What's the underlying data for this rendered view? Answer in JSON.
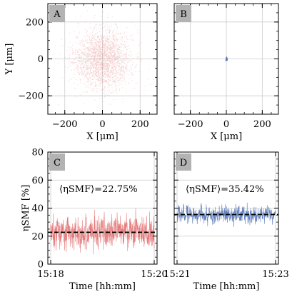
{
  "colors": {
    "red_series": "#e06666",
    "blue_series": "#4a6db3",
    "grid": "#cccccc",
    "panel_label_bg": "#b3b3b3",
    "mean_line": "#000000"
  },
  "chart_data": [
    {
      "panel": "A",
      "type": "scatter",
      "xlabel": "X [μm]",
      "ylabel": "Y [μm]",
      "xlim": [
        -290,
        290
      ],
      "ylim": [
        -300,
        300
      ],
      "xticks": [
        -200,
        0,
        200
      ],
      "yticks": [
        -200,
        0,
        200
      ],
      "xtick_labels": [
        "−200",
        "0",
        "200"
      ],
      "ytick_labels": [
        "−200",
        "0",
        "200"
      ],
      "grid": true,
      "distribution": {
        "center": [
          0,
          0
        ],
        "std_x": 75,
        "std_y": 80,
        "n_points": 2600
      },
      "color": "#e06666"
    },
    {
      "panel": "B",
      "type": "scatter",
      "xlabel": "X [μm]",
      "ylabel": "",
      "xlim": [
        -290,
        290
      ],
      "ylim": [
        -300,
        300
      ],
      "xticks": [
        -200,
        0,
        200
      ],
      "yticks": [
        -200,
        0,
        200
      ],
      "xtick_labels": [
        "−200",
        "0",
        "200"
      ],
      "ytick_labels": [],
      "grid": true,
      "distribution": {
        "center": [
          0,
          0
        ],
        "std_x": 2,
        "std_y": 4,
        "n_points": 120
      },
      "color": "#4a6db3"
    },
    {
      "panel": "C",
      "type": "line",
      "xlabel": "Time [hh:mm]",
      "ylabel": "ηSMF [%]",
      "ylim": [
        0,
        80
      ],
      "yticks": [
        0,
        20,
        40,
        60,
        80
      ],
      "ytick_labels": [
        "0",
        "20",
        "40",
        "60",
        "80"
      ],
      "x_start": "15:18",
      "x_end": "15:20",
      "xtick_labels": [
        "15:18",
        "15:20"
      ],
      "grid": true,
      "series": {
        "mean": 22.75,
        "spread": 9,
        "min": 2,
        "max": 48,
        "n_samples": 900
      },
      "mean_line": 22.75,
      "annotation": "⟨ηSMF⟩=22.75%",
      "color": "#e06666"
    },
    {
      "panel": "D",
      "type": "line",
      "xlabel": "Time [hh:mm]",
      "ylabel": "",
      "ylim": [
        0,
        80
      ],
      "yticks": [
        0,
        20,
        40,
        60,
        80
      ],
      "ytick_labels": [],
      "x_start": "15:21",
      "x_end": "15:23",
      "xtick_labels": [
        "15:21",
        "15:23"
      ],
      "grid": true,
      "series": {
        "mean": 35.42,
        "spread": 4.5,
        "min": 18,
        "max": 46,
        "n_samples": 900
      },
      "mean_line": 35.42,
      "annotation": "⟨ηSMF⟩=35.42%",
      "color": "#4a6db3"
    }
  ]
}
